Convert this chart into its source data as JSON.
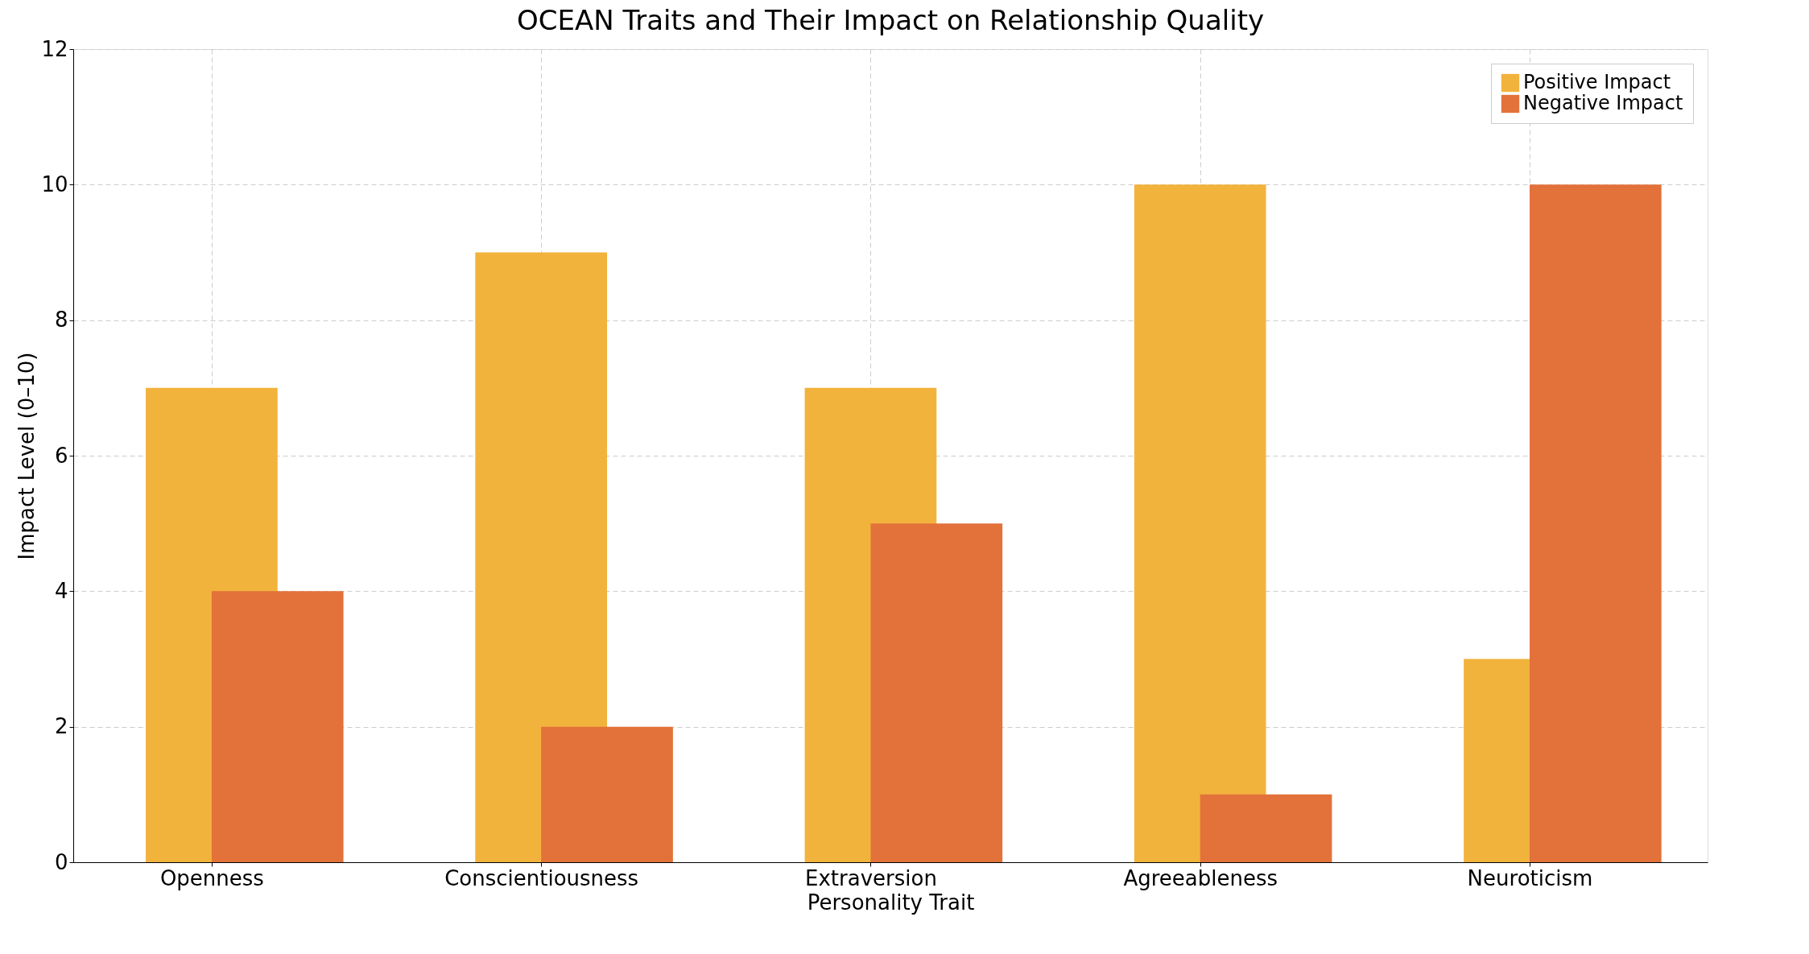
{
  "chart_data": {
    "type": "bar",
    "title": "OCEAN Traits and Their Impact on Relationship Quality",
    "xlabel": "Personality Trait",
    "ylabel": "Impact Level (0–10)",
    "categories": [
      "Openness",
      "Conscientiousness",
      "Extraversion",
      "Agreeableness",
      "Neuroticism"
    ],
    "series": [
      {
        "name": "Positive Impact",
        "color": "#f2b33d",
        "values": [
          7,
          9,
          7,
          10,
          3
        ]
      },
      {
        "name": "Negative Impact",
        "color": "#e2723a",
        "values": [
          4,
          2,
          5,
          1,
          10
        ]
      }
    ],
    "ylim": [
      0,
      12
    ],
    "yticks": [
      0,
      2,
      4,
      6,
      8,
      10,
      12
    ],
    "grid": true,
    "legend": "top right"
  }
}
